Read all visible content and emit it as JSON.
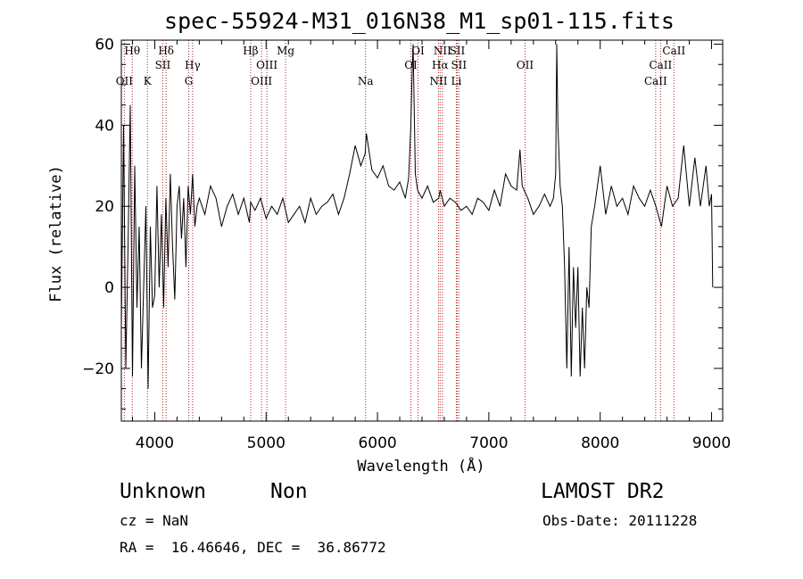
{
  "info": {
    "class": "Unknown",
    "subclass": "Non",
    "survey": "LAMOST DR2",
    "cz": "cz = NaN",
    "obsdate": "Obs-Date: 20111228",
    "radec": "RA =  16.46646, DEC =  36.86772"
  },
  "chart_data": {
    "type": "line",
    "title": "spec-55924-M31_016N38_M1_sp01-115.fits",
    "xlabel": "Wavelength (Å)",
    "ylabel": "Flux (relative)",
    "xlim": [
      3700,
      9100
    ],
    "ylim": [
      -33,
      61
    ],
    "xticks": [
      4000,
      5000,
      6000,
      7000,
      8000,
      9000
    ],
    "yticks": [
      -20,
      0,
      20,
      40,
      60
    ],
    "x_minor_step": 200,
    "y_minor_step": 5,
    "series": [
      {
        "x": [
          3700,
          3720,
          3740,
          3760,
          3780,
          3800,
          3820,
          3840,
          3860,
          3880,
          3900,
          3920,
          3940,
          3960,
          3980,
          4000,
          4020,
          4040,
          4060,
          4080,
          4100,
          4120,
          4140,
          4160,
          4180,
          4200,
          4220,
          4240,
          4260,
          4280,
          4300,
          4320,
          4340,
          4360,
          4380,
          4400,
          4450,
          4500,
          4550,
          4600,
          4650,
          4700,
          4750,
          4800,
          4850,
          4861,
          4900,
          4950,
          5000,
          5050,
          5100,
          5150,
          5200,
          5250,
          5300,
          5350,
          5400,
          5450,
          5500,
          5550,
          5600,
          5650,
          5700,
          5750,
          5800,
          5850,
          5890,
          5900,
          5950,
          6000,
          6050,
          6100,
          6150,
          6200,
          6250,
          6280,
          6300,
          6310,
          6320,
          6340,
          6360,
          6400,
          6450,
          6500,
          6550,
          6563,
          6600,
          6650,
          6700,
          6750,
          6800,
          6850,
          6900,
          6950,
          7000,
          7050,
          7100,
          7150,
          7200,
          7250,
          7280,
          7300,
          7350,
          7400,
          7450,
          7500,
          7550,
          7580,
          7600,
          7610,
          7620,
          7640,
          7660,
          7680,
          7700,
          7720,
          7740,
          7760,
          7780,
          7800,
          7820,
          7840,
          7860,
          7880,
          7900,
          7920,
          7950,
          8000,
          8050,
          8100,
          8150,
          8200,
          8250,
          8300,
          8350,
          8400,
          8450,
          8500,
          8550,
          8600,
          8650,
          8700,
          8750,
          8800,
          8850,
          8900,
          8950,
          8980,
          9000,
          9010
        ],
        "y": [
          -10,
          40,
          -20,
          10,
          45,
          -22,
          30,
          -5,
          15,
          -20,
          0,
          20,
          -25,
          15,
          -5,
          -2,
          25,
          0,
          18,
          -5,
          22,
          5,
          28,
          10,
          -3,
          20,
          25,
          12,
          22,
          5,
          25,
          18,
          28,
          15,
          20,
          22,
          18,
          25,
          22,
          15,
          20,
          23,
          18,
          22,
          16,
          21,
          19,
          22,
          17,
          20,
          18,
          22,
          16,
          18,
          20,
          16,
          22,
          18,
          20,
          21,
          23,
          18,
          22,
          28,
          35,
          30,
          33,
          38,
          29,
          27,
          30,
          25,
          24,
          26,
          22,
          27,
          40,
          52,
          60,
          28,
          24,
          22,
          25,
          21,
          22,
          24,
          20,
          22,
          21,
          19,
          20,
          18,
          22,
          21,
          19,
          24,
          20,
          28,
          25,
          24,
          34,
          25,
          22,
          18,
          20,
          23,
          20,
          22,
          28,
          60,
          40,
          25,
          20,
          5,
          -20,
          10,
          -22,
          5,
          -10,
          5,
          -22,
          -5,
          -20,
          0,
          -5,
          15,
          20,
          30,
          18,
          25,
          20,
          22,
          18,
          25,
          22,
          20,
          24,
          20,
          15,
          25,
          20,
          22,
          35,
          20,
          32,
          20,
          30,
          20,
          23,
          0
        ],
        "color": "#000000"
      }
    ],
    "annotations": [
      {
        "label": "OII",
        "x": 3727,
        "row": 3
      },
      {
        "label": "Hθ",
        "x": 3798,
        "row": 1
      },
      {
        "label": "K",
        "x": 3934,
        "row": 3
      },
      {
        "label": "Hδ",
        "x": 4102,
        "row": 1
      },
      {
        "label": "SII",
        "x": 4072,
        "row": 2
      },
      {
        "label": "Hγ",
        "x": 4340,
        "row": 2
      },
      {
        "label": "G",
        "x": 4305,
        "row": 3
      },
      {
        "label": "Hβ",
        "x": 4861,
        "row": 1
      },
      {
        "label": "OIII",
        "x": 4959,
        "row": 3
      },
      {
        "label": "OIII",
        "x": 5007,
        "row": 2
      },
      {
        "label": "Mg",
        "x": 5175,
        "row": 1
      },
      {
        "label": "Na",
        "x": 5893,
        "row": 3
      },
      {
        "label": "OI",
        "x": 6300,
        "row": 2
      },
      {
        "label": "OI",
        "x": 6364,
        "row": 1
      },
      {
        "label": "NII",
        "x": 6548,
        "row": 3
      },
      {
        "label": "NII",
        "x": 6583,
        "row": 1
      },
      {
        "label": "Hα",
        "x": 6563,
        "row": 2
      },
      {
        "label": "SII",
        "x": 6716,
        "row": 1
      },
      {
        "label": "SII",
        "x": 6731,
        "row": 2
      },
      {
        "label": "Li",
        "x": 6708,
        "row": 3
      },
      {
        "label": "OII",
        "x": 7325,
        "row": 2
      },
      {
        "label": "CaII",
        "x": 8498,
        "row": 3
      },
      {
        "label": "CaII",
        "x": 8542,
        "row": 2
      },
      {
        "label": "CaII",
        "x": 8662,
        "row": 1
      }
    ],
    "line_positions": [
      3727,
      3798,
      3934,
      4072,
      4102,
      4305,
      4340,
      4861,
      4959,
      5007,
      5175,
      5893,
      6300,
      6364,
      6548,
      6563,
      6583,
      6708,
      6716,
      6731,
      7325,
      8498,
      8542,
      8662
    ]
  }
}
